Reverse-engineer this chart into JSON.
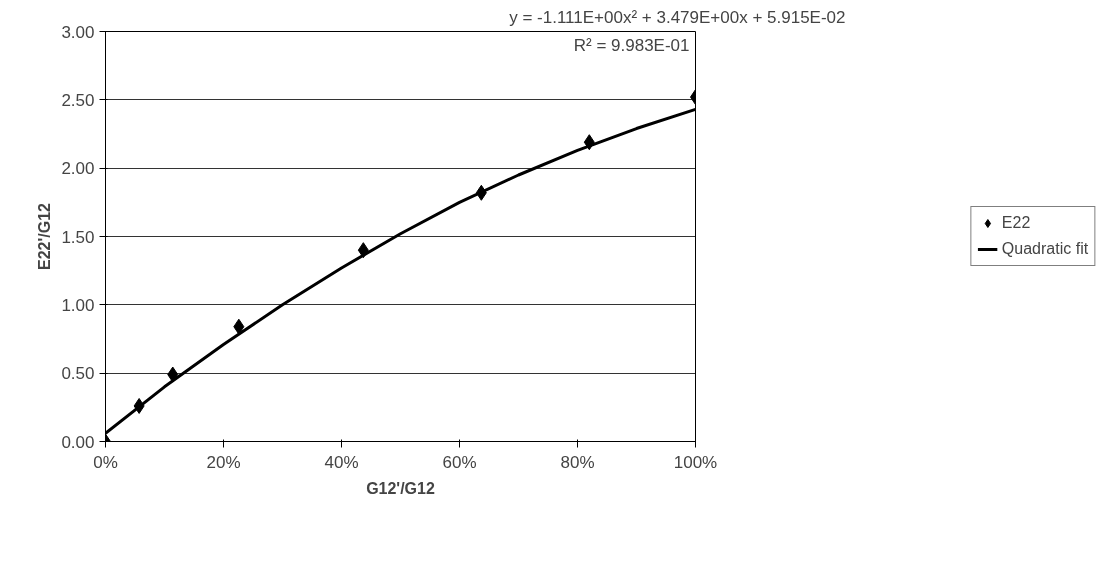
{
  "chart_data": {
    "type": "scatter",
    "xlabel": "G12'/G12",
    "ylabel": "E22'/G12",
    "xlim": [
      0,
      1
    ],
    "ylim": [
      0,
      3
    ],
    "xticks": [
      {
        "value": 0,
        "label": "0%"
      },
      {
        "value": 0.2,
        "label": "20%"
      },
      {
        "value": 0.4,
        "label": "40%"
      },
      {
        "value": 0.6,
        "label": "60%"
      },
      {
        "value": 0.8,
        "label": "80%"
      },
      {
        "value": 1,
        "label": "100%"
      }
    ],
    "yticks": [
      {
        "value": 0,
        "label": "0.00"
      },
      {
        "value": 0.5,
        "label": "0.50"
      },
      {
        "value": 1,
        "label": "1.00"
      },
      {
        "value": 1.5,
        "label": "1.50"
      },
      {
        "value": 2,
        "label": "2.00"
      },
      {
        "value": 2.5,
        "label": "2.50"
      },
      {
        "value": 3,
        "label": "3.00"
      }
    ],
    "grid": "y",
    "legend": "right",
    "annotations": [
      "y = -1.111E+00x² + 3.479E+00x + 5.915E-02",
      "R² = 9.983E-01"
    ],
    "series": [
      {
        "name": "E22",
        "marker": "diamond",
        "color": "#000000",
        "x": [
          0,
          0.057,
          0.114,
          0.226,
          0.437,
          0.637,
          0.82,
          1.0
        ],
        "values": [
          0,
          0.26,
          0.49,
          0.84,
          1.4,
          1.82,
          2.19,
          2.52
        ]
      },
      {
        "name": "Quadratic fit",
        "type": "line",
        "marker": "none",
        "line_style": "solid",
        "color": "#000000",
        "x": [
          0,
          0.1,
          0.2,
          0.3,
          0.4,
          0.5,
          0.6,
          0.7,
          0.8,
          0.9,
          1.0
        ],
        "values": [
          0.06,
          0.4,
          0.71,
          1.0,
          1.27,
          1.52,
          1.75,
          1.95,
          2.13,
          2.29,
          2.43
        ]
      }
    ]
  }
}
